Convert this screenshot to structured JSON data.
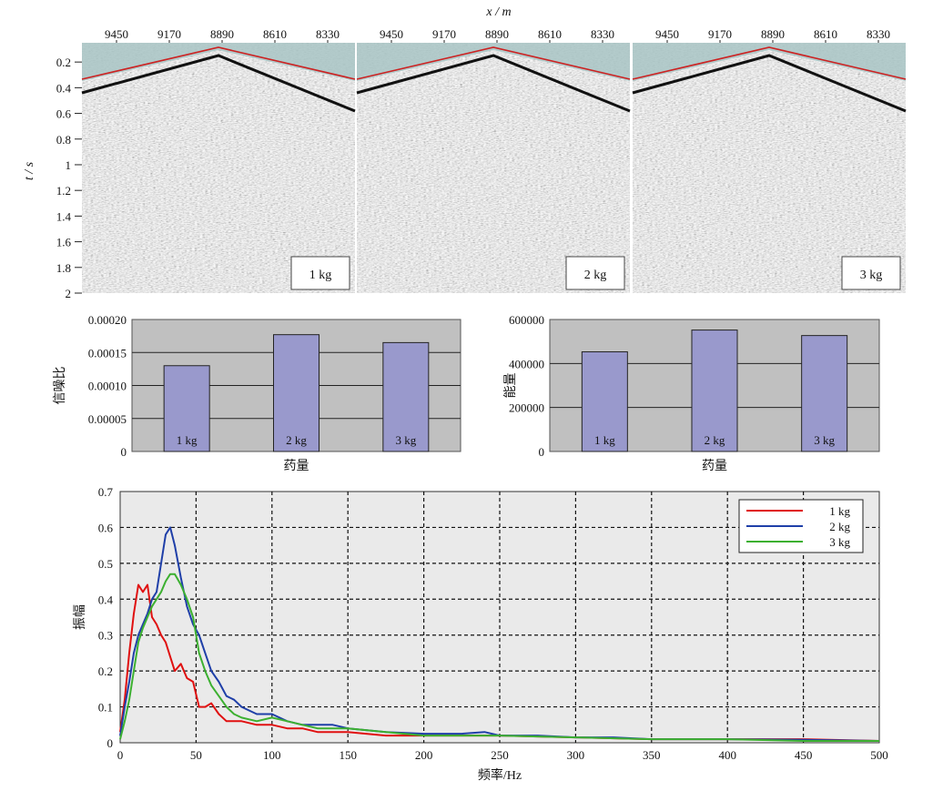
{
  "figure": {
    "chart_data": [
      {
        "type": "heatmap",
        "description_label": "seismic-gathers",
        "x_axis_title": "x / m",
        "y_axis_title": "t / s",
        "x_tick_labels": [
          "9450",
          "9170",
          "8890",
          "8610",
          "8330"
        ],
        "y_ticks": [
          0.2,
          0.4,
          0.6,
          0.8,
          1.0,
          1.2,
          1.4,
          1.6,
          1.8,
          2.0
        ],
        "ylim": [
          0.05,
          2.0
        ],
        "panels": [
          {
            "label": "1 kg"
          },
          {
            "label": "2 kg"
          },
          {
            "label": "3 kg"
          }
        ],
        "first_break_line_color": "#cc2222"
      },
      {
        "type": "bar",
        "categories": [
          "1 kg",
          "2 kg",
          "3 kg"
        ],
        "values": [
          0.00013,
          0.000177,
          0.000165
        ],
        "xlabel": "药量",
        "ylabel": "信噪比",
        "ylim": [
          0,
          0.0002
        ],
        "y_ticks": [
          0,
          5e-05,
          0.0001,
          0.00015,
          0.0002
        ],
        "y_tick_labels": [
          "0",
          "0.00005",
          "0.00010",
          "0.00015",
          "0.00020"
        ],
        "bar_color": "#9999cc",
        "plot_bg": "#c0c0c0",
        "grid": true
      },
      {
        "type": "bar",
        "categories": [
          "1 kg",
          "2 kg",
          "3 kg"
        ],
        "values": [
          453000,
          552000,
          527000
        ],
        "xlabel": "药量",
        "ylabel": "能量",
        "ylim": [
          0,
          600000
        ],
        "y_ticks": [
          0,
          200000,
          400000,
          600000
        ],
        "y_tick_labels": [
          "0",
          "200000",
          "400000",
          "600000"
        ],
        "bar_color": "#9999cc",
        "plot_bg": "#c0c0c0",
        "grid": true
      },
      {
        "type": "line",
        "xlabel": "频率/Hz",
        "ylabel": "振幅",
        "xlim": [
          0,
          500
        ],
        "ylim": [
          0,
          0.7
        ],
        "x_ticks": [
          0,
          50,
          100,
          150,
          200,
          250,
          300,
          350,
          400,
          450,
          500
        ],
        "y_ticks": [
          0,
          0.1,
          0.2,
          0.3,
          0.4,
          0.5,
          0.6,
          0.7
        ],
        "y_tick_labels": [
          "0",
          "0.1",
          "0.2",
          "0.3",
          "0.4",
          "0.5",
          "0.6",
          "0.7"
        ],
        "grid": true,
        "legend_position": "top-right",
        "plot_bg": "#eaeaea",
        "series": [
          {
            "name": "1 kg",
            "color": "#e01010",
            "x": [
              0,
              3,
              6,
              9,
              12,
              15,
              18,
              21,
              24,
              27,
              30,
              33,
              36,
              40,
              44,
              48,
              52,
              56,
              60,
              65,
              70,
              75,
              80,
              90,
              100,
              110,
              120,
              130,
              140,
              150,
              175,
              200,
              250,
              300,
              350,
              400,
              450,
              500
            ],
            "y": [
              0.03,
              0.12,
              0.25,
              0.36,
              0.44,
              0.42,
              0.44,
              0.35,
              0.33,
              0.3,
              0.28,
              0.24,
              0.2,
              0.22,
              0.18,
              0.17,
              0.1,
              0.1,
              0.11,
              0.08,
              0.06,
              0.06,
              0.06,
              0.05,
              0.05,
              0.04,
              0.04,
              0.03,
              0.03,
              0.03,
              0.02,
              0.02,
              0.02,
              0.015,
              0.01,
              0.01,
              0.01,
              0.005
            ]
          },
          {
            "name": "2 kg",
            "color": "#1f3fa8",
            "x": [
              0,
              3,
              6,
              9,
              12,
              15,
              18,
              21,
              24,
              27,
              30,
              33,
              36,
              40,
              44,
              48,
              52,
              56,
              60,
              65,
              70,
              75,
              80,
              90,
              100,
              110,
              120,
              130,
              140,
              150,
              175,
              200,
              225,
              240,
              250,
              275,
              300,
              325,
              350,
              400,
              450,
              500
            ],
            "y": [
              0.02,
              0.1,
              0.17,
              0.25,
              0.3,
              0.33,
              0.36,
              0.4,
              0.42,
              0.5,
              0.58,
              0.6,
              0.55,
              0.46,
              0.38,
              0.33,
              0.3,
              0.25,
              0.2,
              0.17,
              0.13,
              0.12,
              0.1,
              0.08,
              0.08,
              0.06,
              0.05,
              0.05,
              0.05,
              0.04,
              0.03,
              0.025,
              0.025,
              0.03,
              0.02,
              0.02,
              0.015,
              0.015,
              0.01,
              0.01,
              0.008,
              0.005
            ]
          },
          {
            "name": "3 kg",
            "color": "#3cb030",
            "x": [
              0,
              3,
              6,
              9,
              12,
              15,
              18,
              21,
              24,
              27,
              30,
              33,
              36,
              40,
              44,
              48,
              52,
              56,
              60,
              65,
              70,
              75,
              80,
              90,
              100,
              110,
              120,
              130,
              140,
              150,
              175,
              200,
              250,
              300,
              350,
              400,
              450,
              500
            ],
            "y": [
              0.01,
              0.06,
              0.12,
              0.2,
              0.28,
              0.32,
              0.35,
              0.38,
              0.4,
              0.42,
              0.45,
              0.47,
              0.47,
              0.44,
              0.4,
              0.35,
              0.25,
              0.2,
              0.16,
              0.13,
              0.1,
              0.08,
              0.07,
              0.06,
              0.07,
              0.06,
              0.05,
              0.04,
              0.04,
              0.04,
              0.03,
              0.02,
              0.02,
              0.015,
              0.01,
              0.01,
              0.005,
              0.005
            ]
          }
        ]
      }
    ]
  }
}
